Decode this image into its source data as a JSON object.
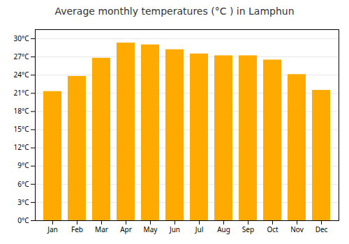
{
  "chart_data": {
    "type": "bar",
    "title": "Average monthly temperatures (°C ) in Lamphun",
    "categories": [
      "Jan",
      "Feb",
      "Mar",
      "Apr",
      "May",
      "Jun",
      "Jul",
      "Aug",
      "Sep",
      "Oct",
      "Nov",
      "Dec"
    ],
    "values": [
      21.3,
      23.8,
      26.8,
      29.3,
      29.0,
      28.2,
      27.5,
      27.2,
      27.2,
      26.5,
      24.1,
      21.5
    ],
    "color": "#FFAA00",
    "ylim": [
      0,
      31.5
    ],
    "yticks": [
      {
        "value": 0,
        "label": "0°C"
      },
      {
        "value": 3,
        "label": "3°C"
      },
      {
        "value": 6,
        "label": "6°C"
      },
      {
        "value": 9,
        "label": "9°C"
      },
      {
        "value": 12,
        "label": "12°C"
      },
      {
        "value": 15,
        "label": "15°C"
      },
      {
        "value": 18,
        "label": "18°C"
      },
      {
        "value": 21,
        "label": "21°C"
      },
      {
        "value": 24,
        "label": "24°C"
      },
      {
        "value": 27,
        "label": "27°C"
      },
      {
        "value": 30,
        "label": "30°C"
      }
    ],
    "grid": true
  }
}
